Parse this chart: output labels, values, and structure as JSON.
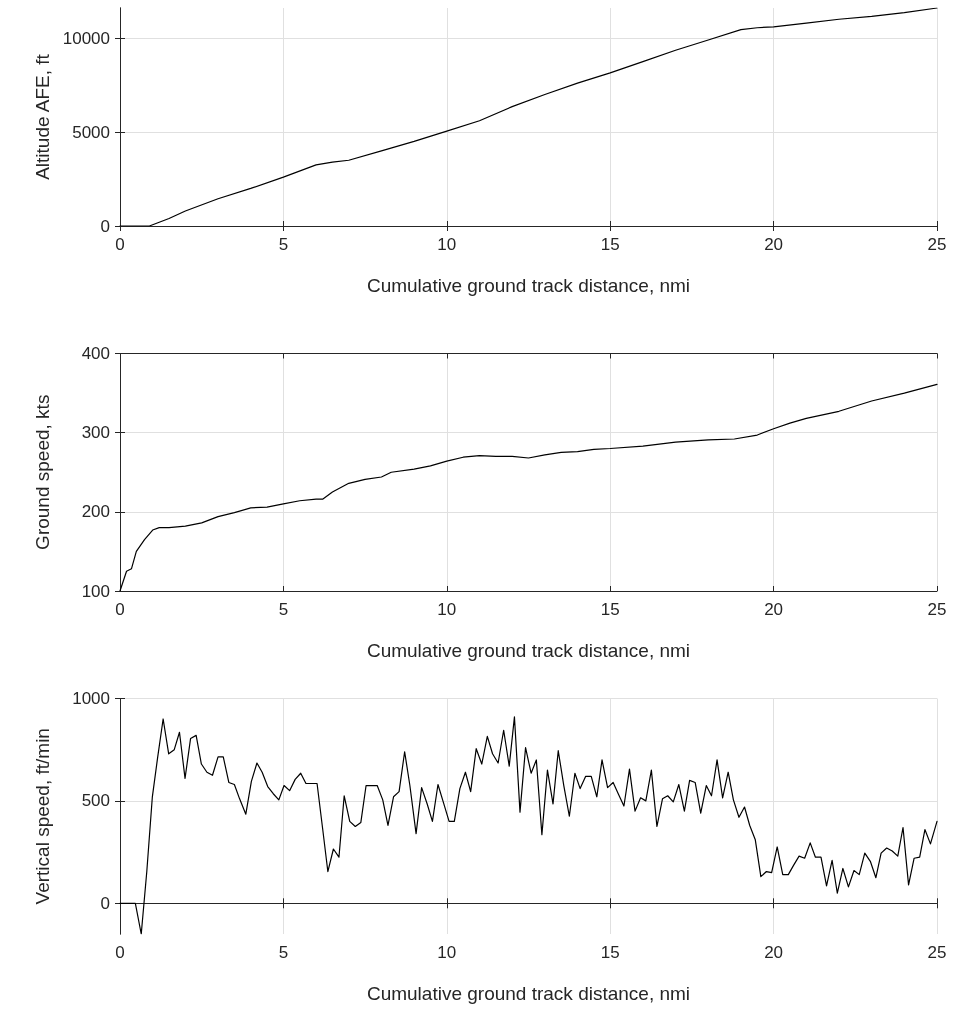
{
  "chart_data": [
    {
      "type": "line",
      "xlabel": "Cumulative ground track distance, nmi",
      "ylabel": "Altitude AFE, ft",
      "color": "#000000",
      "grid": true,
      "xlim": [
        0,
        25
      ],
      "xticks": [
        0,
        5,
        10,
        15,
        20,
        25
      ],
      "ylim": [
        0,
        11600
      ],
      "yticks": [
        0,
        5000,
        10000
      ],
      "x": [
        0,
        0.9,
        1.5,
        2,
        3,
        4,
        5,
        6,
        6.5,
        7,
        8,
        9,
        10,
        11,
        12,
        13,
        14,
        15,
        16,
        17,
        18,
        19,
        19.5,
        20,
        21,
        22,
        23,
        24,
        25
      ],
      "values": [
        0,
        0,
        400,
        800,
        1450,
        2000,
        2600,
        3250,
        3400,
        3500,
        4000,
        4500,
        5050,
        5600,
        6350,
        7000,
        7600,
        8150,
        8750,
        9350,
        9900,
        10450,
        10550,
        10600,
        10800,
        11000,
        11150,
        11350,
        11600
      ]
    },
    {
      "type": "line",
      "xlabel": "Cumulative ground track distance, nmi",
      "ylabel": "Ground speed, kts",
      "color": "#000000",
      "grid": true,
      "xlim": [
        0,
        25
      ],
      "xticks": [
        0,
        5,
        10,
        15,
        20,
        25
      ],
      "ylim": [
        100,
        400
      ],
      "yticks": [
        100,
        200,
        300,
        400
      ],
      "x": [
        0,
        0.2,
        0.35,
        0.5,
        0.75,
        1,
        1.2,
        1.5,
        2,
        2.5,
        3,
        3.5,
        4,
        4.5,
        5,
        5.5,
        6,
        6.2,
        6.5,
        7,
        7.5,
        8,
        8.3,
        9,
        9.5,
        10,
        10.5,
        11,
        11.5,
        12,
        12.5,
        13,
        13.5,
        14,
        14.5,
        15,
        16,
        17,
        18,
        18.8,
        19.5,
        20,
        20.5,
        21,
        22,
        23,
        24,
        25
      ],
      "values": [
        100,
        125,
        128,
        150,
        165,
        177,
        180,
        180,
        182,
        186,
        194,
        199,
        205,
        206,
        210,
        214,
        216,
        216,
        225,
        236,
        241,
        244,
        250,
        254,
        258,
        264,
        269,
        271,
        270,
        270,
        268,
        272,
        275,
        276,
        279,
        280,
        283,
        288,
        291,
        292,
        297,
        305,
        312,
        318,
        327,
        340,
        350,
        361
      ]
    },
    {
      "type": "line",
      "xlabel": "Cumulative ground track distance, nmi",
      "ylabel": "Vertical speed, ft/min",
      "color": "#000000",
      "grid": true,
      "xlim": [
        0,
        25
      ],
      "xticks": [
        0,
        5,
        10,
        15,
        20,
        25
      ],
      "ylim": [
        -150,
        1000
      ],
      "yticks": [
        0,
        500,
        1000
      ],
      "x": [
        0,
        0.47,
        0.65,
        0.82,
        0.99,
        1.15,
        1.32,
        1.49,
        1.66,
        1.82,
        1.99,
        2.16,
        2.33,
        2.49,
        2.66,
        2.83,
        3.0,
        3.16,
        3.33,
        3.5,
        3.66,
        3.85,
        4.02,
        4.19,
        4.35,
        4.52,
        4.69,
        4.86,
        5.02,
        5.19,
        5.36,
        5.53,
        5.69,
        5.86,
        6.03,
        6.2,
        6.36,
        6.53,
        6.7,
        6.86,
        7.03,
        7.2,
        7.37,
        7.53,
        7.7,
        7.87,
        8.04,
        8.2,
        8.37,
        8.54,
        8.71,
        8.87,
        9.06,
        9.23,
        9.4,
        9.56,
        9.73,
        9.9,
        10.07,
        10.23,
        10.4,
        10.57,
        10.73,
        10.9,
        11.07,
        11.24,
        11.4,
        11.57,
        11.74,
        11.91,
        12.07,
        12.24,
        12.41,
        12.58,
        12.74,
        12.91,
        13.08,
        13.25,
        13.41,
        13.58,
        13.75,
        13.92,
        14.08,
        14.25,
        14.42,
        14.59,
        14.75,
        14.92,
        15.09,
        15.26,
        15.42,
        15.59,
        15.76,
        15.93,
        16.09,
        16.26,
        16.43,
        16.6,
        16.76,
        16.93,
        17.1,
        17.27,
        17.43,
        17.6,
        17.77,
        17.94,
        18.1,
        18.27,
        18.44,
        18.61,
        18.77,
        18.94,
        19.11,
        19.27,
        19.44,
        19.61,
        19.78,
        19.94,
        20.11,
        20.28,
        20.45,
        20.61,
        20.78,
        20.95,
        21.12,
        21.28,
        21.45,
        21.62,
        21.79,
        21.95,
        22.12,
        22.29,
        22.46,
        22.62,
        22.79,
        22.96,
        23.13,
        23.29,
        23.46,
        23.63,
        23.8,
        23.96,
        24.13,
        24.3,
        24.47,
        24.63,
        24.8,
        25
      ],
      "values": [
        0,
        0,
        -150,
        155,
        520,
        710,
        900,
        730,
        750,
        835,
        610,
        805,
        820,
        680,
        640,
        625,
        715,
        715,
        590,
        580,
        510,
        435,
        595,
        685,
        640,
        570,
        535,
        505,
        575,
        550,
        605,
        635,
        585,
        585,
        585,
        365,
        155,
        265,
        225,
        525,
        400,
        375,
        395,
        575,
        575,
        575,
        505,
        380,
        520,
        545,
        740,
        575,
        340,
        565,
        485,
        400,
        580,
        490,
        400,
        400,
        560,
        640,
        545,
        755,
        680,
        815,
        730,
        685,
        845,
        670,
        910,
        445,
        760,
        635,
        700,
        335,
        650,
        485,
        745,
        575,
        425,
        635,
        560,
        620,
        620,
        520,
        700,
        565,
        590,
        530,
        475,
        655,
        450,
        515,
        500,
        650,
        375,
        510,
        525,
        495,
        580,
        450,
        600,
        590,
        440,
        575,
        525,
        700,
        515,
        640,
        505,
        420,
        470,
        380,
        310,
        130,
        155,
        150,
        275,
        140,
        140,
        185,
        230,
        220,
        295,
        225,
        225,
        85,
        210,
        50,
        170,
        80,
        160,
        140,
        245,
        205,
        125,
        245,
        270,
        255,
        230,
        370,
        90,
        220,
        225,
        360,
        290,
        400
      ]
    }
  ]
}
